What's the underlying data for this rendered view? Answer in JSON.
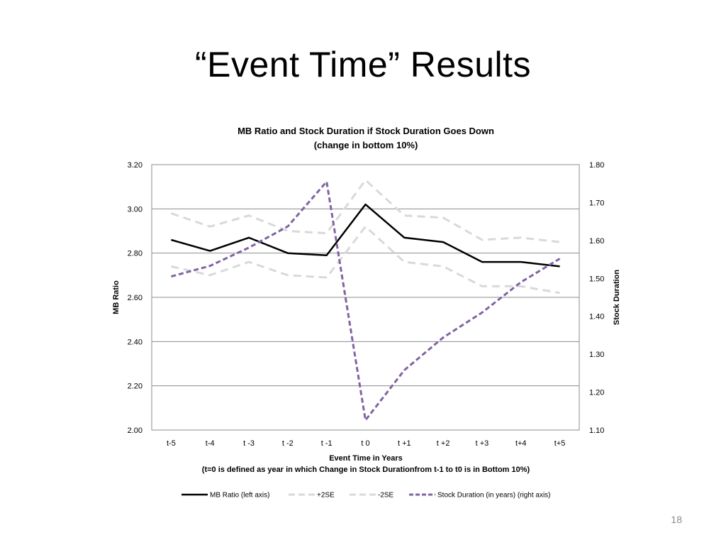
{
  "slide": {
    "title": "“Event Time” Results",
    "page_number": "18"
  },
  "chart_data": {
    "type": "line",
    "title": "MB Ratio and Stock Duration if Stock Duration Goes Down",
    "subtitle": "(change in bottom 10%)",
    "xlabel": "Event Time in Years",
    "xlabel_note": "(t=0 is defined as year in which Change in Stock Durationfrom t-1 to t0 is in Bottom 10%)",
    "ylabel": "MB Ratio",
    "y2label": "Stock Duration",
    "categories": [
      "t-5",
      "t-4",
      "t -3",
      "t -2",
      "t -1",
      "t 0",
      "t +1",
      "t +2",
      "t +3",
      "t+4",
      "t+5"
    ],
    "ylim": [
      2.0,
      3.2
    ],
    "y2lim": [
      1.1,
      1.8
    ],
    "yticks": [
      "2.00",
      "2.20",
      "2.40",
      "2.60",
      "2.80",
      "3.00",
      "3.20"
    ],
    "y2ticks": [
      "1.10",
      "1.20",
      "1.30",
      "1.40",
      "1.50",
      "1.60",
      "1.70",
      "1.80"
    ],
    "grid": true,
    "legend_position": "bottom",
    "series": [
      {
        "name": "MB Ratio (left axis)",
        "axis": "left",
        "style": "solid",
        "color": "#000000",
        "values": [
          2.86,
          2.81,
          2.87,
          2.8,
          2.79,
          3.02,
          2.87,
          2.85,
          2.76,
          2.76,
          2.74
        ]
      },
      {
        "name": "+2SE",
        "axis": "left",
        "style": "dash",
        "color": "#d9d9d9",
        "values": [
          2.98,
          2.92,
          2.97,
          2.9,
          2.89,
          3.13,
          2.97,
          2.96,
          2.86,
          2.87,
          2.85
        ]
      },
      {
        "name": "-2SE",
        "axis": "left",
        "style": "dash",
        "color": "#d9d9d9",
        "values": [
          2.74,
          2.7,
          2.76,
          2.7,
          2.69,
          2.92,
          2.76,
          2.74,
          2.65,
          2.65,
          2.62
        ]
      },
      {
        "name": "Stock Duration (in years) (right axis)",
        "axis": "right",
        "style": "dash",
        "color": "#8064a2",
        "values": [
          1.505,
          1.533,
          1.581,
          1.637,
          1.755,
          1.126,
          1.258,
          1.344,
          1.41,
          1.49,
          1.552
        ]
      }
    ]
  }
}
